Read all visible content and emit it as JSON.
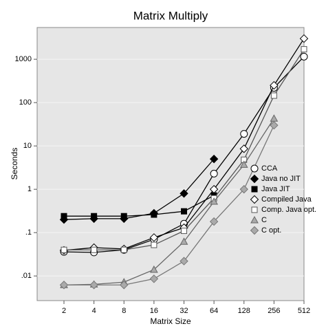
{
  "chart_data": {
    "type": "line",
    "title": "Matrix Multiply",
    "x_label": "Matrix Size",
    "y_label": "Seconds",
    "categories": [
      "2",
      "4",
      "8",
      "16",
      "32",
      "64",
      "128",
      "256",
      "512"
    ],
    "yscale": "log",
    "ylim": [
      0.0027,
      5400
    ],
    "yticks": [
      {
        "value": 0.01,
        "label": ".01"
      },
      {
        "value": 0.1,
        "label": ".1"
      },
      1,
      10,
      100,
      1000
    ],
    "grid": true,
    "legend": "right",
    "series": [
      {
        "name": "CCA",
        "color": "#000000",
        "marker": "circle",
        "marker_fill": "#ffffff",
        "values": [
          0.036,
          0.035,
          0.04,
          0.07,
          0.16,
          2.3,
          19,
          220,
          1150
        ]
      },
      {
        "name": "Java no JIT",
        "color": "#000000",
        "marker": "diamond",
        "marker_fill": "#000000",
        "values": [
          0.2,
          0.21,
          0.21,
          0.28,
          0.8,
          5,
          null,
          null,
          null
        ]
      },
      {
        "name": "Java JIT",
        "color": "#000000",
        "marker": "square",
        "marker_fill": "#000000",
        "values": [
          0.24,
          0.24,
          0.24,
          0.26,
          0.31,
          0.72,
          null,
          null,
          null
        ]
      },
      {
        "name": "Compiled Java",
        "color": "#000000",
        "marker": "diamond",
        "marker_fill": "#ffffff",
        "values": [
          0.039,
          0.045,
          0.042,
          0.077,
          0.13,
          1.0,
          8.6,
          250,
          3000
        ]
      },
      {
        "name": "Comp. Java opt.",
        "color": "#555555",
        "marker": "square",
        "marker_fill": "#ffffff",
        "values": [
          0.04,
          0.04,
          0.04,
          0.052,
          0.11,
          0.62,
          4.8,
          145,
          1700
        ]
      },
      {
        "name": "C",
        "color": "#666666",
        "marker": "triangle",
        "marker_fill": "#aaaaaa",
        "values": [
          0.0062,
          0.0064,
          0.0072,
          0.014,
          0.062,
          0.52,
          3.7,
          43,
          null
        ]
      },
      {
        "name": "C opt.",
        "color": "#777777",
        "marker": "diamond",
        "marker_fill": "#aaaaaa",
        "values": [
          0.0062,
          0.0062,
          0.0062,
          0.0086,
          0.022,
          0.18,
          1.0,
          30,
          null
        ]
      }
    ]
  }
}
